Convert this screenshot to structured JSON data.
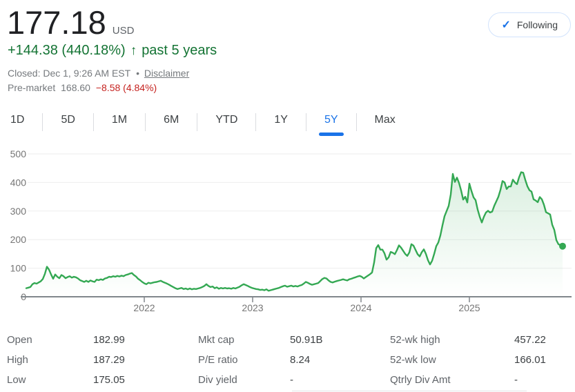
{
  "header": {
    "price": "177.18",
    "currency": "USD",
    "change": "+144.38 (440.18%)",
    "change_arrow": "↑",
    "change_period": "past 5 years",
    "status_line": "Closed: Dec 1, 9:26 AM EST",
    "status_separator": "•",
    "disclaimer_label": "Disclaimer",
    "premarket_label": "Pre-market",
    "premarket_price": "168.60",
    "premarket_change": "−8.58 (4.84%)",
    "following_label": "Following",
    "following_check": "✓",
    "colors": {
      "up_green": "#137333",
      "down_red": "#c5221f",
      "accent_blue": "#1a73e8",
      "price_black": "#202124"
    }
  },
  "tabs": {
    "items": [
      {
        "label": "1D"
      },
      {
        "label": "5D"
      },
      {
        "label": "1M"
      },
      {
        "label": "6M"
      },
      {
        "label": "YTD"
      },
      {
        "label": "1Y"
      },
      {
        "label": "5Y"
      },
      {
        "label": "Max"
      }
    ],
    "active": "5Y"
  },
  "chart_data": {
    "type": "line",
    "series_name": "Stock price (USD)",
    "x_range_years": [
      2020.9,
      2025.9
    ],
    "x_ticks": [
      2022,
      2023,
      2024,
      2025
    ],
    "y_ticks": [
      0,
      100,
      200,
      300,
      400,
      500
    ],
    "ylim": [
      0,
      500
    ],
    "grid": true,
    "line_color": "#34a853",
    "axis_color": "#80868b",
    "grid_color": "#ededee",
    "tick_label_color": "#757575",
    "end_dot": true,
    "current_value": 177.18,
    "values": [
      30,
      32,
      34,
      44,
      48,
      46,
      50,
      54,
      62,
      80,
      105,
      95,
      78,
      63,
      78,
      70,
      65,
      76,
      72,
      65,
      69,
      72,
      67,
      70,
      68,
      64,
      58,
      55,
      52,
      56,
      52,
      57,
      54,
      52,
      60,
      58,
      61,
      59,
      64,
      66,
      70,
      69,
      72,
      70,
      73,
      71,
      74,
      72,
      76,
      78,
      81,
      83,
      76,
      71,
      63,
      58,
      52,
      47,
      44,
      49,
      47,
      49,
      51,
      52,
      54,
      56,
      52,
      49,
      46,
      42,
      38,
      34,
      30,
      27,
      29,
      31,
      27,
      29,
      26,
      29,
      26,
      28,
      27,
      29,
      31,
      34,
      38,
      44,
      38,
      34,
      36,
      30,
      33,
      28,
      31,
      29,
      31,
      29,
      30,
      28,
      31,
      29,
      32,
      35,
      40,
      44,
      41,
      38,
      34,
      31,
      29,
      27,
      26,
      24,
      25,
      23,
      26,
      21,
      23,
      25,
      27,
      29,
      31,
      34,
      37,
      39,
      35,
      37,
      39,
      36,
      38,
      36,
      39,
      41,
      46,
      52,
      49,
      45,
      42,
      44,
      46,
      48,
      55,
      62,
      66,
      64,
      57,
      52,
      50,
      53,
      55,
      57,
      59,
      61,
      59,
      57,
      61,
      63,
      66,
      68,
      71,
      73,
      70,
      64,
      69,
      74,
      79,
      85,
      120,
      170,
      181,
      165,
      165,
      152,
      130,
      138,
      157,
      154,
      149,
      163,
      180,
      172,
      161,
      150,
      143,
      155,
      184,
      179,
      164,
      149,
      141,
      156,
      166,
      150,
      128,
      113,
      126,
      150,
      177,
      190,
      215,
      250,
      282,
      300,
      318,
      358,
      430,
      402,
      417,
      398,
      372,
      340,
      350,
      330,
      396,
      370,
      348,
      338,
      305,
      280,
      260,
      280,
      295,
      301,
      295,
      298,
      318,
      334,
      350,
      374,
      405,
      400,
      377,
      386,
      386,
      410,
      400,
      394,
      418,
      436,
      434,
      409,
      387,
      373,
      368,
      341,
      337,
      331,
      349,
      341,
      322,
      296,
      292,
      288,
      252,
      234,
      198,
      184,
      180,
      177
    ]
  },
  "stats": {
    "groups": [
      [
        {
          "label": "Open",
          "value": "182.99"
        },
        {
          "label": "High",
          "value": "187.29"
        },
        {
          "label": "Low",
          "value": "175.05"
        }
      ],
      [
        {
          "label": "Mkt cap",
          "value": "50.91B"
        },
        {
          "label": "P/E ratio",
          "value": "8.24"
        },
        {
          "label": "Div yield",
          "value": "-"
        }
      ],
      [
        {
          "label": "52-wk high",
          "value": "457.22"
        },
        {
          "label": "52-wk low",
          "value": "166.01"
        },
        {
          "label": "Qtrly Div Amt",
          "value": "-"
        }
      ]
    ]
  }
}
